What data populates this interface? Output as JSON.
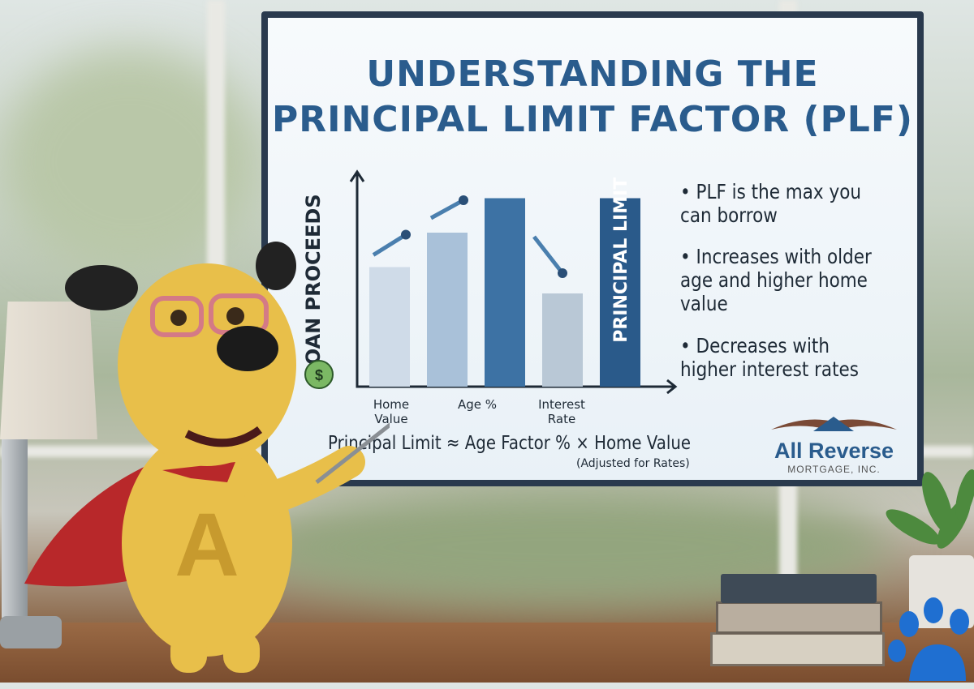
{
  "slide": {
    "title_line1": "UNDERSTANDING THE",
    "title_line2": "PRINCIPAL LIMIT FACTOR (PLF)",
    "bullets": [
      "PLF is the max you can borrow",
      "Increases with older age and higher home value",
      "Decreases with higher interest rates"
    ],
    "formula": "Principal Limit ≈ Age Factor % × Home Value",
    "formula_note": "(Adjusted for Rates)",
    "logo": {
      "name": "All Reverse",
      "subtitle": "MORTGAGE, INC."
    }
  },
  "chart_data": {
    "type": "bar",
    "ylabel": "LOAN PROCEEDS",
    "category_labels": [
      "Home Value",
      "",
      "Age %",
      "Interest Rate",
      "PRINCIPAL LIMIT"
    ],
    "values_relative": [
      0.59,
      0.76,
      0.93,
      0.46,
      0.93
    ],
    "colors": [
      "#cfdbe8",
      "#a9c1d9",
      "#3d72a4",
      "#b9c8d6",
      "#2a5a8a"
    ],
    "trend_arrows": [
      "up",
      "up",
      "down"
    ],
    "grid": false,
    "icon": "money-bag-icon"
  },
  "colors": {
    "accent": "#2a5c8d",
    "mascot": "#e8bf4a",
    "cape": "#b8282a",
    "paw": "#1f6fd1"
  }
}
